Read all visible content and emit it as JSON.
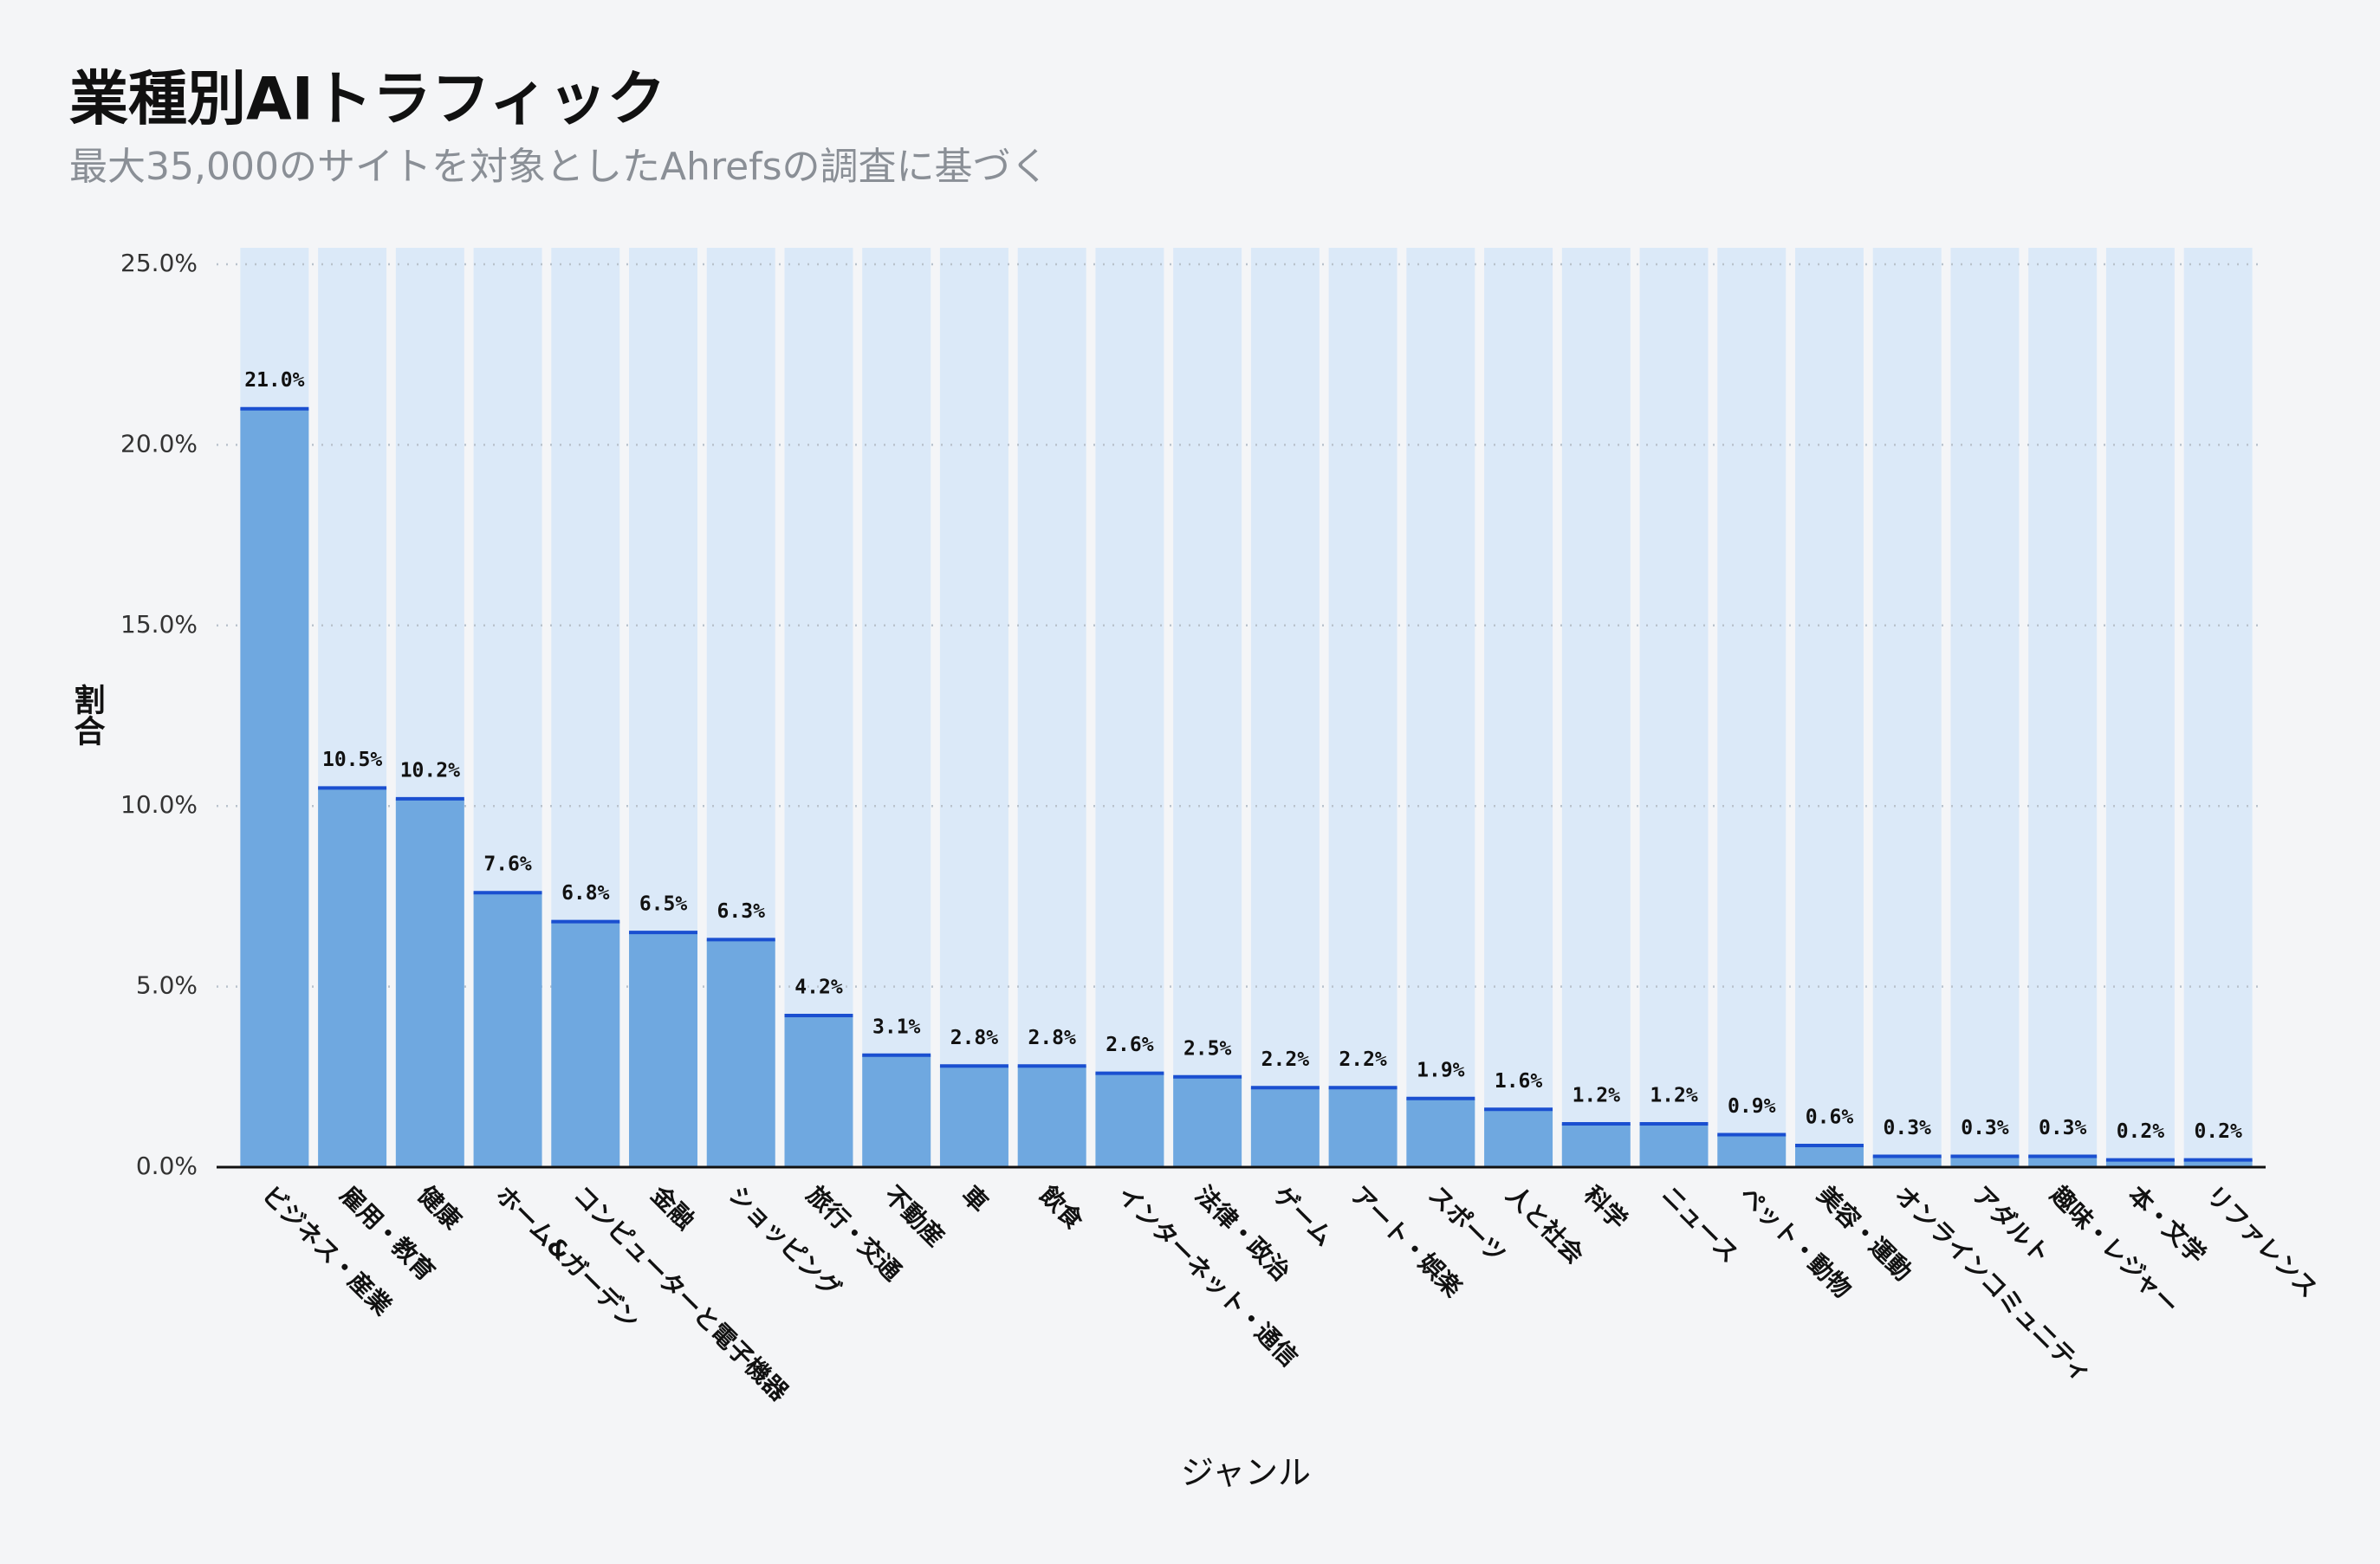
{
  "chart_data": {
    "type": "bar",
    "title": "業種別AIトラフィック",
    "subtitle": "最大35,000のサイトを対象としたAhrefsの調査に基づく",
    "x_label": "ジャンル",
    "y_label": "割合",
    "categories": [
      "ビジネス・産業",
      "雇用・教育",
      "健康",
      "ホーム&ガーデン",
      "コンピューターと電子機器",
      "金融",
      "ショッピング",
      "旅行・交通",
      "不動産",
      "車",
      "飲食",
      "インターネット・通信",
      "法律・政治",
      "ゲーム",
      "アート・娯楽",
      "スポーツ",
      "人と社会",
      "科学",
      "ニュース",
      "ペット・動物",
      "美容・運動",
      "オンラインコミュニティ",
      "アダルト",
      "趣味・レジャー",
      "本・文学",
      "リファレンス"
    ],
    "values": [
      21.0,
      10.5,
      10.2,
      7.6,
      6.8,
      6.5,
      6.3,
      4.2,
      3.1,
      2.8,
      2.8,
      2.6,
      2.5,
      2.2,
      2.2,
      1.9,
      1.6,
      1.2,
      1.2,
      0.9,
      0.6,
      0.3,
      0.3,
      0.3,
      0.2,
      0.2
    ],
    "value_labels": [
      "21.0%",
      "10.5%",
      "10.2%",
      "7.6%",
      "6.8%",
      "6.5%",
      "6.3%",
      "4.2%",
      "3.1%",
      "2.8%",
      "2.8%",
      "2.6%",
      "2.5%",
      "2.2%",
      "2.2%",
      "1.9%",
      "1.6%",
      "1.2%",
      "1.2%",
      "0.9%",
      "0.6%",
      "0.3%",
      "0.3%",
      "0.3%",
      "0.2%",
      "0.2%"
    ],
    "color": "#6fa8e0",
    "ylim": [
      0,
      25
    ],
    "yticks": [
      {
        "value": 0,
        "label": "0.0%"
      },
      {
        "value": 5,
        "label": "5.0%"
      },
      {
        "value": 10,
        "label": "10.0%"
      },
      {
        "value": 15,
        "label": "15.0%"
      },
      {
        "value": 20,
        "label": "20.0%"
      },
      {
        "value": 25,
        "label": "25.0%"
      }
    ],
    "grid": true
  }
}
